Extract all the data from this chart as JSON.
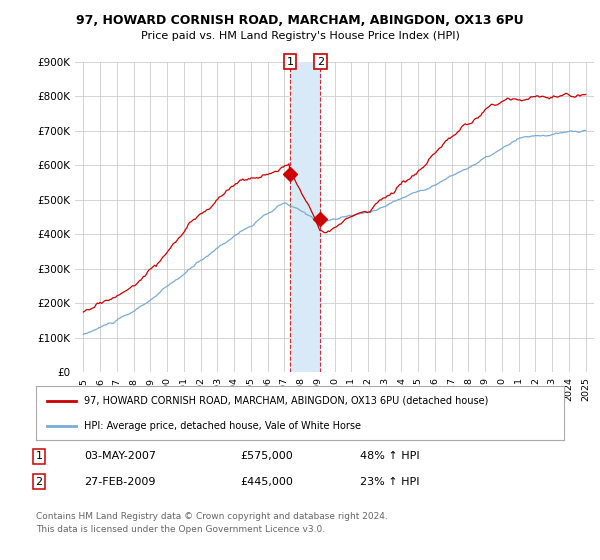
{
  "title_line1": "97, HOWARD CORNISH ROAD, MARCHAM, ABINGDON, OX13 6PU",
  "title_line2": "Price paid vs. HM Land Registry's House Price Index (HPI)",
  "ylim": [
    0,
    900000
  ],
  "yticks": [
    0,
    100000,
    200000,
    300000,
    400000,
    500000,
    600000,
    700000,
    800000,
    900000
  ],
  "ytick_labels": [
    "£0",
    "£100K",
    "£200K",
    "£300K",
    "£400K",
    "£500K",
    "£600K",
    "£700K",
    "£800K",
    "£900K"
  ],
  "hpi_color": "#7aacd6",
  "price_color": "#cc0000",
  "shade_color": "#d8eaf7",
  "transaction1": {
    "date_num": 2007.34,
    "price": 575000,
    "label": "1",
    "date_str": "03-MAY-2007",
    "pct": "48% ↑ HPI"
  },
  "transaction2": {
    "date_num": 2009.16,
    "price": 445000,
    "label": "2",
    "date_str": "27-FEB-2009",
    "pct": "23% ↑ HPI"
  },
  "legend_property": "97, HOWARD CORNISH ROAD, MARCHAM, ABINGDON, OX13 6PU (detached house)",
  "legend_hpi": "HPI: Average price, detached house, Vale of White Horse",
  "footnote": "Contains HM Land Registry data © Crown copyright and database right 2024.\nThis data is licensed under the Open Government Licence v3.0.",
  "background_color": "#ffffff",
  "grid_color": "#cccccc"
}
